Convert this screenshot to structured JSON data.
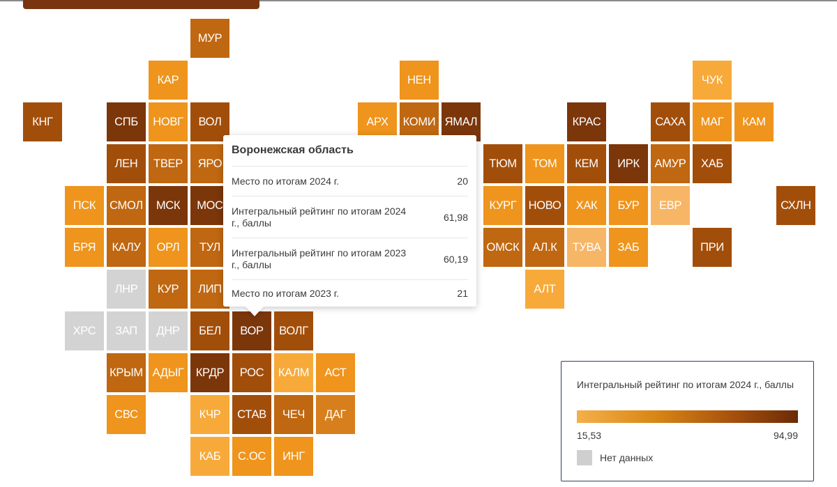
{
  "colors": {
    "c1": "#f7aa3a",
    "c2": "#ef941c",
    "c3": "#d87f1d",
    "c4": "#bf6711",
    "c5": "#a24e0b",
    "c6": "#7b360a",
    "light": "#f6b666",
    "nodata": "#d3d3d3"
  },
  "regions": [
    {
      "code": "МУР",
      "col": 4,
      "row": 0,
      "shade": "c4"
    },
    {
      "code": "КАР",
      "col": 3,
      "row": 1,
      "shade": "c2"
    },
    {
      "code": "НЕН",
      "col": 9,
      "row": 1,
      "shade": "c2"
    },
    {
      "code": "ЧУК",
      "col": 16,
      "row": 1,
      "shade": "c1"
    },
    {
      "code": "КНГ",
      "col": 0,
      "row": 2,
      "shade": "c5"
    },
    {
      "code": "СПБ",
      "col": 2,
      "row": 2,
      "shade": "c6"
    },
    {
      "code": "НОВГ",
      "col": 3,
      "row": 2,
      "shade": "c2"
    },
    {
      "code": "ВОЛ",
      "col": 4,
      "row": 2,
      "shade": "c5"
    },
    {
      "code": "АРХ",
      "col": 8,
      "row": 2,
      "shade": "c2"
    },
    {
      "code": "КОМИ",
      "col": 9,
      "row": 2,
      "shade": "c4"
    },
    {
      "code": "ЯМАЛ",
      "col": 10,
      "row": 2,
      "shade": "c6"
    },
    {
      "code": "КРАС",
      "col": 13,
      "row": 2,
      "shade": "c6"
    },
    {
      "code": "САХА",
      "col": 15,
      "row": 2,
      "shade": "c5"
    },
    {
      "code": "МАГ",
      "col": 16,
      "row": 2,
      "shade": "c2"
    },
    {
      "code": "КАМ",
      "col": 17,
      "row": 2,
      "shade": "c2"
    },
    {
      "code": "ЛЕН",
      "col": 2,
      "row": 3,
      "shade": "c5"
    },
    {
      "code": "ТВЕР",
      "col": 3,
      "row": 3,
      "shade": "c4"
    },
    {
      "code": "ЯРО",
      "col": 4,
      "row": 3,
      "shade": "c4"
    },
    {
      "code": "ТЮМ",
      "col": 11,
      "row": 3,
      "shade": "c5"
    },
    {
      "code": "ТОМ",
      "col": 12,
      "row": 3,
      "shade": "c2"
    },
    {
      "code": "КЕМ",
      "col": 13,
      "row": 3,
      "shade": "c5"
    },
    {
      "code": "ИРК",
      "col": 14,
      "row": 3,
      "shade": "c6"
    },
    {
      "code": "АМУР",
      "col": 15,
      "row": 3,
      "shade": "c4"
    },
    {
      "code": "ХАБ",
      "col": 16,
      "row": 3,
      "shade": "c5"
    },
    {
      "code": "ПСК",
      "col": 1,
      "row": 4,
      "shade": "c2"
    },
    {
      "code": "СМОЛ",
      "col": 2,
      "row": 4,
      "shade": "c4"
    },
    {
      "code": "МСК",
      "col": 3,
      "row": 4,
      "shade": "c6"
    },
    {
      "code": "МОС",
      "col": 4,
      "row": 4,
      "shade": "c6"
    },
    {
      "code": "КУРГ",
      "col": 11,
      "row": 4,
      "shade": "c2"
    },
    {
      "code": "НОВО",
      "col": 12,
      "row": 4,
      "shade": "c5"
    },
    {
      "code": "ХАК",
      "col": 13,
      "row": 4,
      "shade": "c2"
    },
    {
      "code": "БУР",
      "col": 14,
      "row": 4,
      "shade": "c2"
    },
    {
      "code": "ЕВР",
      "col": 15,
      "row": 4,
      "shade": "light"
    },
    {
      "code": "СХЛН",
      "col": 18,
      "row": 4,
      "shade": "c5"
    },
    {
      "code": "БРЯ",
      "col": 1,
      "row": 5,
      "shade": "c2"
    },
    {
      "code": "КАЛУ",
      "col": 2,
      "row": 5,
      "shade": "c4"
    },
    {
      "code": "ОРЛ",
      "col": 3,
      "row": 5,
      "shade": "c2"
    },
    {
      "code": "ТУЛ",
      "col": 4,
      "row": 5,
      "shade": "c4"
    },
    {
      "code": "ОМСК",
      "col": 11,
      "row": 5,
      "shade": "c4"
    },
    {
      "code": "АЛ.К",
      "col": 12,
      "row": 5,
      "shade": "c4"
    },
    {
      "code": "ТУВА",
      "col": 13,
      "row": 5,
      "shade": "light"
    },
    {
      "code": "ЗАБ",
      "col": 14,
      "row": 5,
      "shade": "c2"
    },
    {
      "code": "ПРИ",
      "col": 16,
      "row": 5,
      "shade": "c5"
    },
    {
      "code": "ЛНР",
      "col": 2,
      "row": 6,
      "shade": "nodata"
    },
    {
      "code": "КУР",
      "col": 3,
      "row": 6,
      "shade": "c4"
    },
    {
      "code": "ЛИП",
      "col": 4,
      "row": 6,
      "shade": "c4"
    },
    {
      "code": "АЛТ",
      "col": 12,
      "row": 6,
      "shade": "c1"
    },
    {
      "code": "ХРС",
      "col": 1,
      "row": 7,
      "shade": "nodata"
    },
    {
      "code": "ЗАП",
      "col": 2,
      "row": 7,
      "shade": "nodata"
    },
    {
      "code": "ДНР",
      "col": 3,
      "row": 7,
      "shade": "nodata"
    },
    {
      "code": "БЕЛ",
      "col": 4,
      "row": 7,
      "shade": "c5"
    },
    {
      "code": "ВОР",
      "col": 5,
      "row": 7,
      "shade": "c6"
    },
    {
      "code": "ВОЛГ",
      "col": 6,
      "row": 7,
      "shade": "c5"
    },
    {
      "code": "КРЫМ",
      "col": 2,
      "row": 8,
      "shade": "c4"
    },
    {
      "code": "АДЫГ",
      "col": 3,
      "row": 8,
      "shade": "c2"
    },
    {
      "code": "КРДР",
      "col": 4,
      "row": 8,
      "shade": "c6"
    },
    {
      "code": "РОС",
      "col": 5,
      "row": 8,
      "shade": "c5"
    },
    {
      "code": "КАЛМ",
      "col": 6,
      "row": 8,
      "shade": "c1"
    },
    {
      "code": "АСТ",
      "col": 7,
      "row": 8,
      "shade": "c2"
    },
    {
      "code": "СВС",
      "col": 2,
      "row": 9,
      "shade": "c2"
    },
    {
      "code": "КЧР",
      "col": 4,
      "row": 9,
      "shade": "c1"
    },
    {
      "code": "СТАВ",
      "col": 5,
      "row": 9,
      "shade": "c5"
    },
    {
      "code": "ЧЕЧ",
      "col": 6,
      "row": 9,
      "shade": "c4"
    },
    {
      "code": "ДАГ",
      "col": 7,
      "row": 9,
      "shade": "c3"
    },
    {
      "code": "КАБ",
      "col": 4,
      "row": 10,
      "shade": "c1"
    },
    {
      "code": "С.ОС",
      "col": 5,
      "row": 10,
      "shade": "c2"
    },
    {
      "code": "ИНГ",
      "col": 6,
      "row": 10,
      "shade": "c2"
    }
  ],
  "tooltip": {
    "title": "Воронежская область",
    "rows": [
      {
        "label": "Место по итогам 2024 г.",
        "value": "20"
      },
      {
        "label": "Интегральный рейтинг по итогам 2024 г., баллы",
        "value": "61,98"
      },
      {
        "label": "Интегральный рейтинг по итогам 2023 г., баллы",
        "value": "60,19"
      },
      {
        "label": "Место по итогам 2023 г.",
        "value": "21"
      }
    ]
  },
  "legend": {
    "title": "Интегральный рейтинг по итогам 2024 г., баллы",
    "min": "15,53",
    "max": "94,99",
    "nodata_label": "Нет данных"
  }
}
